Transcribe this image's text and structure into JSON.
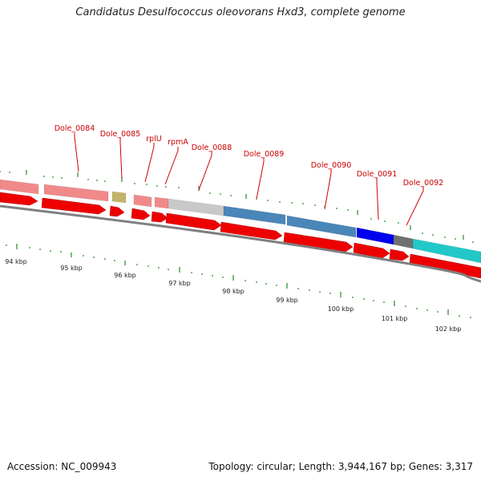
{
  "header": {
    "title": "Candidatus Desulfococcus oleovorans Hxd3, complete genome"
  },
  "footer": {
    "accession": "Accession: NC_009943",
    "summary": "Topology: circular; Length: 3,944,167 bp; Genes: 3,317"
  },
  "colors": {
    "forward_arrow": "#ee0000",
    "gc_tick": "#228b22",
    "backbone": "#808080",
    "label": "#cc0000",
    "pink": "#f08a8a",
    "olive": "#c2b46a",
    "lightgray": "#c8c8c8",
    "steelblue": "#4a86b8",
    "blue": "#0000ee",
    "darkgray": "#707070",
    "cyan": "#22c8c8"
  },
  "gene_labels": [
    {
      "text": "Dole_0084"
    },
    {
      "text": "Dole_0085"
    },
    {
      "text": "rplU"
    },
    {
      "text": "rpmA"
    },
    {
      "text": "Dole_0088"
    },
    {
      "text": "Dole_0089"
    },
    {
      "text": "Dole_0090"
    },
    {
      "text": "Dole_0091"
    },
    {
      "text": "Dole_0092"
    }
  ],
  "scale_labels": [
    "94 kbp",
    "95 kbp",
    "96 kbp",
    "97 kbp",
    "98 kbp",
    "99 kbp",
    "100 kbp",
    "101 kbp",
    "102 kbp"
  ]
}
